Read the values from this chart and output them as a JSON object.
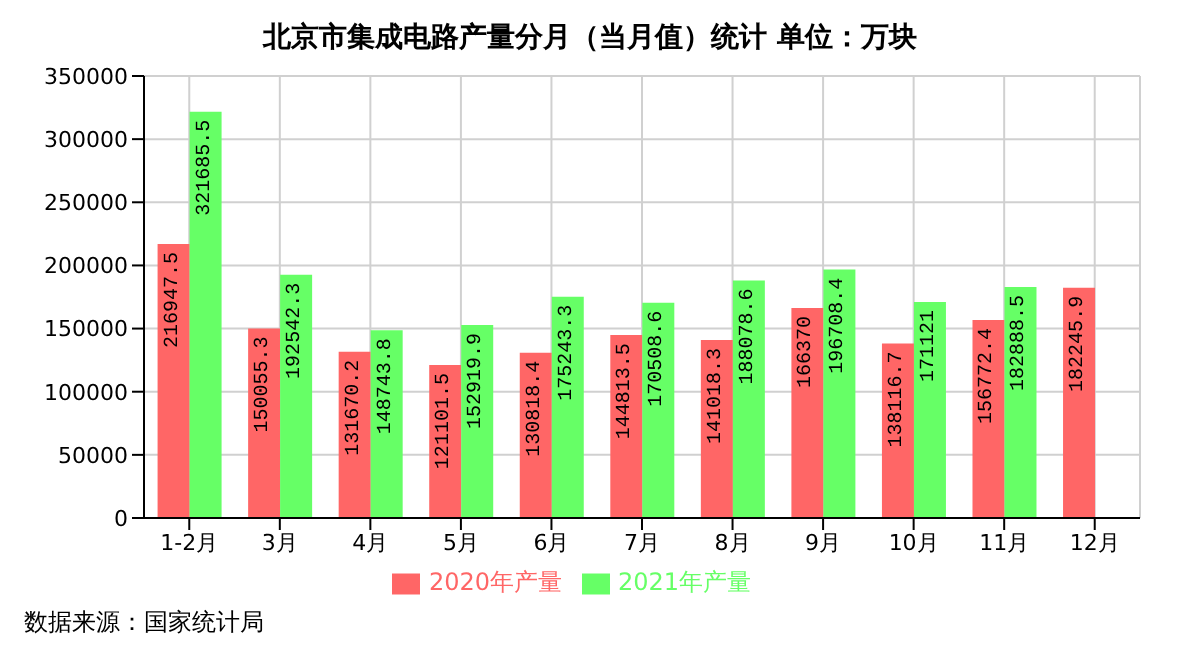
{
  "chart_data": {
    "type": "bar",
    "title": "北京市集成电路产量分月（当月值）统计 单位：万块",
    "categories": [
      "1-2月",
      "3月",
      "4月",
      "5月",
      "6月",
      "7月",
      "8月",
      "9月",
      "10月",
      "11月",
      "12月"
    ],
    "series": [
      {
        "name": "2020年产量",
        "color": "#ff6666",
        "values": [
          216947.5,
          150055.3,
          131670.2,
          121101.5,
          130818.4,
          144813.5,
          141018.3,
          166370,
          138116.7,
          156772.4,
          182245.9
        ]
      },
      {
        "name": "2021年产量",
        "color": "#66ff66",
        "values": [
          321685.5,
          192542.3,
          148743.8,
          152919.9,
          175243.3,
          170508.6,
          188078.6,
          196708.4,
          171121,
          182888.5,
          null
        ]
      }
    ],
    "ylim": [
      0,
      350000
    ],
    "yticks": [
      0,
      50000,
      100000,
      150000,
      200000,
      250000,
      300000,
      350000
    ],
    "grid": true,
    "legend": "bottom",
    "data_labels": true,
    "annotations": [
      "数据来源：国家统计局"
    ]
  }
}
